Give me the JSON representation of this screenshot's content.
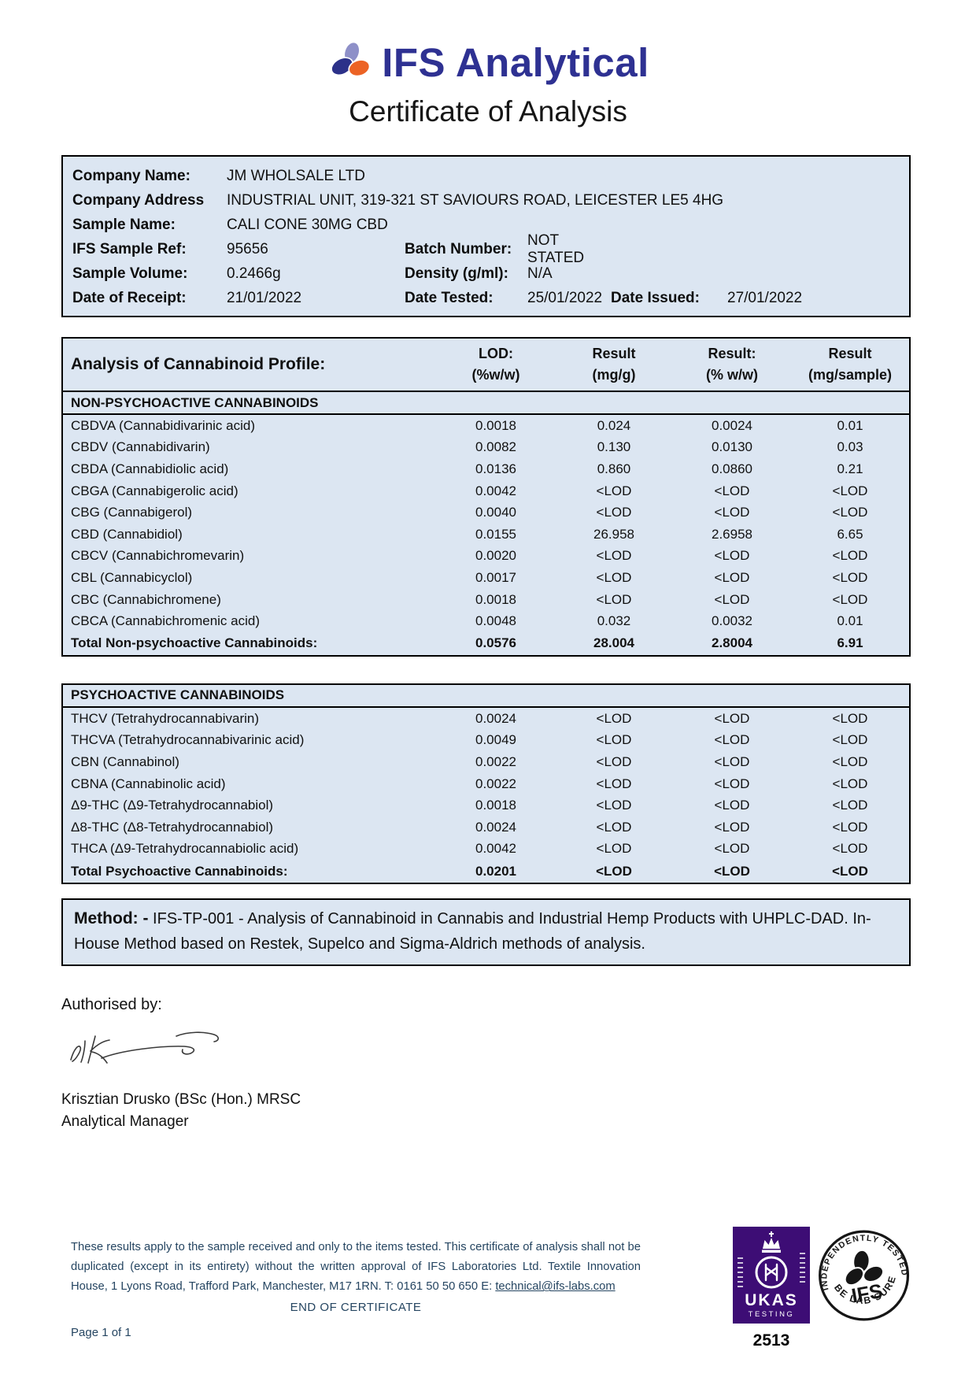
{
  "brand": {
    "name": "IFS Analytical"
  },
  "title": "Certificate of Analysis",
  "sample_info": {
    "rows": [
      [
        {
          "label": "Company Name:",
          "value": "JM WHOLSALE LTD"
        }
      ],
      [
        {
          "label": "Company Address",
          "value": "INDUSTRIAL UNIT, 319-321 ST SAVIOURS ROAD, LEICESTER LE5 4HG"
        }
      ],
      [
        {
          "label": "Sample Name:",
          "value": "CALI CONE 30MG CBD"
        }
      ],
      [
        {
          "label": "IFS Sample Ref:",
          "value": "95656"
        },
        {
          "label": "Batch Number:",
          "value": "NOT STATED"
        }
      ],
      [
        {
          "label": "Sample Volume:",
          "value": "0.2466g"
        },
        {
          "label": "Density (g/ml):",
          "value": "N/A"
        }
      ],
      [
        {
          "label": "Date of Receipt:",
          "value": "21/01/2022"
        },
        {
          "label": "Date Tested:",
          "value": "25/01/2022"
        },
        {
          "label": "Date Issued:",
          "value": "27/01/2022"
        }
      ]
    ]
  },
  "analysis": {
    "title": "Analysis of Cannabinoid Profile:",
    "column_headers": [
      {
        "line1": "LOD:",
        "line2": "(%w/w)"
      },
      {
        "line1": "Result",
        "line2": "(mg/g)"
      },
      {
        "line1": "Result:",
        "line2": "(% w/w)"
      },
      {
        "line1": "Result",
        "line2": "(mg/sample)"
      }
    ],
    "non_psychoactive": {
      "heading": "NON-PSYCHOACTIVE CANNABINOIDS",
      "rows": [
        [
          "CBDVA (Cannabidivarinic acid)",
          "0.0018",
          "0.024",
          "0.0024",
          "0.01"
        ],
        [
          "CBDV (Cannabidivarin)",
          "0.0082",
          "0.130",
          "0.0130",
          "0.03"
        ],
        [
          "CBDA (Cannabidiolic acid)",
          "0.0136",
          "0.860",
          "0.0860",
          "0.21"
        ],
        [
          "CBGA (Cannabigerolic acid)",
          "0.0042",
          "<LOD",
          "<LOD",
          "<LOD"
        ],
        [
          "CBG (Cannabigerol)",
          "0.0040",
          "<LOD",
          "<LOD",
          "<LOD"
        ],
        [
          "CBD (Cannabidiol)",
          "0.0155",
          "26.958",
          "2.6958",
          "6.65"
        ],
        [
          "CBCV (Cannabichromevarin)",
          "0.0020",
          "<LOD",
          "<LOD",
          "<LOD"
        ],
        [
          "CBL (Cannabicyclol)",
          "0.0017",
          "<LOD",
          "<LOD",
          "<LOD"
        ],
        [
          "CBC (Cannabichromene)",
          "0.0018",
          "<LOD",
          "<LOD",
          "<LOD"
        ],
        [
          "CBCA (Cannabichromenic acid)",
          "0.0048",
          "0.032",
          "0.0032",
          "0.01"
        ]
      ],
      "total": [
        "Total Non-psychoactive Cannabinoids:",
        "0.0576",
        "28.004",
        "2.8004",
        "6.91"
      ]
    },
    "psychoactive": {
      "heading": "PSYCHOACTIVE CANNABINOIDS",
      "rows": [
        [
          "THCV (Tetrahydrocannabivarin)",
          "0.0024",
          "<LOD",
          "<LOD",
          "<LOD"
        ],
        [
          "THCVA (Tetrahydrocannabivarinic acid)",
          "0.0049",
          "<LOD",
          "<LOD",
          "<LOD"
        ],
        [
          "CBN (Cannabinol)",
          "0.0022",
          "<LOD",
          "<LOD",
          "<LOD"
        ],
        [
          "CBNA (Cannabinolic acid)",
          "0.0022",
          "<LOD",
          "<LOD",
          "<LOD"
        ],
        [
          "Δ9-THC (Δ9-Tetrahydrocannabiol)",
          "0.0018",
          "<LOD",
          "<LOD",
          "<LOD"
        ],
        [
          "Δ8-THC (Δ8-Tetrahydrocannabiol)",
          "0.0024",
          "<LOD",
          "<LOD",
          "<LOD"
        ],
        [
          "THCA (Δ9-Tetrahydrocannabiolic acid)",
          "0.0042",
          "<LOD",
          "<LOD",
          "<LOD"
        ]
      ],
      "total": [
        "Total Psychoactive Cannabinoids:",
        "0.0201",
        "<LOD",
        "<LOD",
        "<LOD"
      ]
    }
  },
  "method": {
    "label": "Method: -",
    "text": " IFS-TP-001 - Analysis of Cannabinoid in Cannabis and Industrial Hemp Products with UHPLC-DAD. In-House Method based on Restek, Supelco and Sigma-Aldrich methods of analysis."
  },
  "authorisation": {
    "label": "Authorised by:",
    "signatory": "Krisztian Drusko (BSc (Hon.) MRSC",
    "role": "Analytical Manager"
  },
  "footer": {
    "disclaimer": "These results apply to the sample received and only to the items tested. This certificate of analysis shall not be duplicated (except in its entirety) without the written approval of IFS Laboratories Ltd. Textile Innovation House, 1 Lyons Road, Trafford Park, Manchester, M17 1RN. T: 0161 50 50 650 E: ",
    "email": "technical@ifs-labs.com",
    "end_text": "END OF CERTIFICATE",
    "page_number": "Page 1 of 1"
  },
  "badges": {
    "ukas": {
      "label": "UKAS",
      "sublabel": "TESTING",
      "number": "2513"
    },
    "ifs_stamp": {
      "arc_top": "INDEPENDENTLY TESTED",
      "arc_bottom": "BE LAB SURE",
      "center": "IFS"
    }
  },
  "icons": {
    "brand_logo": "trefoil-ellipses",
    "ukas_badge": "crown-circle-ruler-badge",
    "ifs_stamp": "round-independently-tested-stamp"
  },
  "colors": {
    "accent_navy": "#2e3192",
    "accent_orange": "#ec6325",
    "accent_lavender": "#8e90c8",
    "table_bg": "#dce6f2",
    "ukas_purple": "#3d0d75",
    "footer_text": "#254561"
  }
}
